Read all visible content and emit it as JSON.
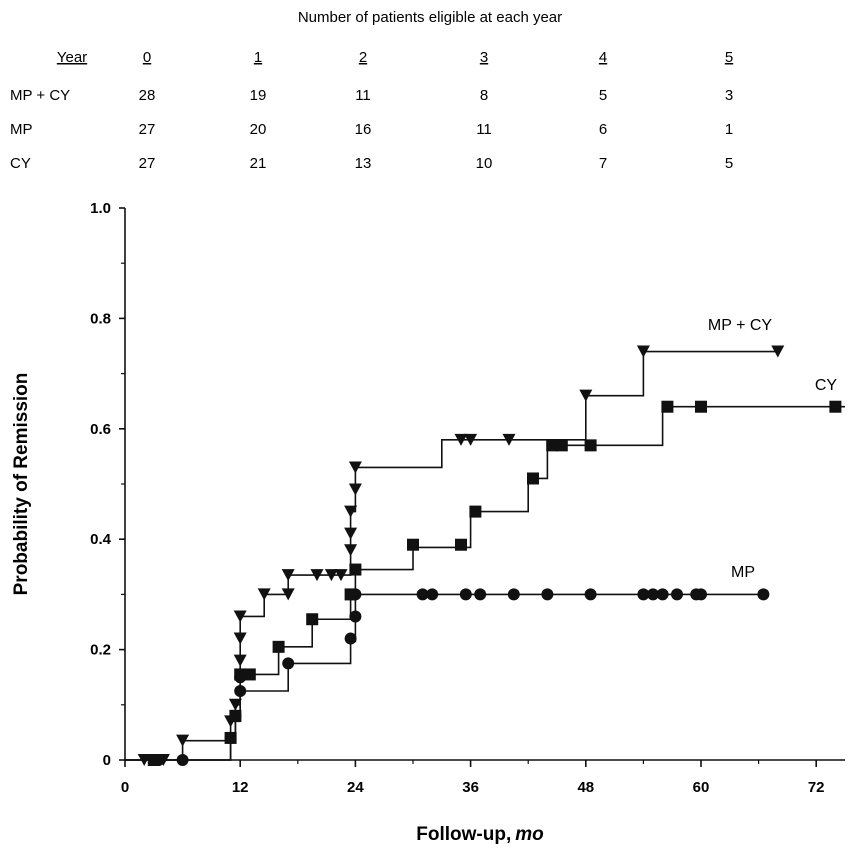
{
  "risk_table": {
    "title": "Number of patients eligible at each year",
    "header_label": "Year",
    "years": [
      "0",
      "1",
      "2",
      "3",
      "4",
      "5"
    ],
    "rows": [
      {
        "label": "MP + CY",
        "values": [
          "28",
          "19",
          "11",
          "8",
          "5",
          "3"
        ]
      },
      {
        "label": "MP",
        "values": [
          "27",
          "20",
          "16",
          "11",
          "6",
          "1"
        ]
      },
      {
        "label": "CY",
        "values": [
          "27",
          "21",
          "13",
          "10",
          "7",
          "5"
        ]
      }
    ]
  },
  "chart_data": {
    "type": "line",
    "title": "",
    "xlabel": "Follow-up,",
    "xlabel_unit": "mo",
    "ylabel": "Probability of Remission",
    "xlim": [
      0,
      75
    ],
    "ylim": [
      0,
      1.0
    ],
    "x_ticks": [
      0,
      12,
      24,
      36,
      48,
      60,
      72
    ],
    "x_tick_labels": [
      "0",
      "12",
      "24",
      "36",
      "48",
      "60",
      "72"
    ],
    "y_ticks": [
      0,
      0.2,
      0.4,
      0.6,
      0.8,
      1.0
    ],
    "y_tick_labels": [
      "0",
      "0.2",
      "0.4",
      "0.6",
      "0.8",
      "1.0"
    ],
    "grid": false,
    "legend": "none (direct labels)",
    "series": [
      {
        "name": "MP + CY",
        "marker": "triangle-down",
        "steps": [
          [
            0,
            0
          ],
          [
            6,
            0.035
          ],
          [
            11,
            0.07
          ],
          [
            12,
            0.26
          ],
          [
            14.5,
            0.3
          ],
          [
            17,
            0.335
          ],
          [
            23.5,
            0.45
          ],
          [
            24,
            0.53
          ],
          [
            33,
            0.58
          ],
          [
            48,
            0.66
          ],
          [
            54,
            0.74
          ],
          [
            68,
            0.74
          ]
        ],
        "markers": [
          [
            2,
            0
          ],
          [
            4,
            0
          ],
          [
            6,
            0.035
          ],
          [
            11,
            0.07
          ],
          [
            11.5,
            0.1
          ],
          [
            12,
            0.18
          ],
          [
            12,
            0.22
          ],
          [
            12,
            0.26
          ],
          [
            14.5,
            0.3
          ],
          [
            17,
            0.3
          ],
          [
            17,
            0.335
          ],
          [
            20,
            0.335
          ],
          [
            21.5,
            0.335
          ],
          [
            22.5,
            0.335
          ],
          [
            23.5,
            0.38
          ],
          [
            23.5,
            0.41
          ],
          [
            23.5,
            0.45
          ],
          [
            24,
            0.49
          ],
          [
            24,
            0.53
          ],
          [
            35,
            0.58
          ],
          [
            36,
            0.58
          ],
          [
            40,
            0.58
          ],
          [
            48,
            0.66
          ],
          [
            54,
            0.74
          ],
          [
            68,
            0.74
          ]
        ]
      },
      {
        "name": "CY",
        "marker": "square",
        "steps": [
          [
            0,
            0
          ],
          [
            11,
            0.04
          ],
          [
            11.5,
            0.1
          ],
          [
            12,
            0.155
          ],
          [
            16,
            0.205
          ],
          [
            19.5,
            0.255
          ],
          [
            23.5,
            0.3
          ],
          [
            24,
            0.345
          ],
          [
            30,
            0.385
          ],
          [
            36,
            0.45
          ],
          [
            42,
            0.51
          ],
          [
            44,
            0.57
          ],
          [
            56,
            0.64
          ],
          [
            75,
            0.64
          ]
        ],
        "markers": [
          [
            3,
            0
          ],
          [
            11,
            0.04
          ],
          [
            11.5,
            0.08
          ],
          [
            12,
            0.155
          ],
          [
            13,
            0.155
          ],
          [
            16,
            0.205
          ],
          [
            19.5,
            0.255
          ],
          [
            23.5,
            0.3
          ],
          [
            24,
            0.345
          ],
          [
            30,
            0.39
          ],
          [
            35,
            0.39
          ],
          [
            36.5,
            0.45
          ],
          [
            42.5,
            0.51
          ],
          [
            44.5,
            0.57
          ],
          [
            45.5,
            0.57
          ],
          [
            48.5,
            0.57
          ],
          [
            56.5,
            0.64
          ],
          [
            60,
            0.64
          ],
          [
            74,
            0.64
          ]
        ]
      },
      {
        "name": "MP",
        "marker": "circle",
        "steps": [
          [
            0,
            0
          ],
          [
            11,
            0.04
          ],
          [
            11.5,
            0.08
          ],
          [
            12,
            0.125
          ],
          [
            17,
            0.175
          ],
          [
            23.5,
            0.215
          ],
          [
            24,
            0.3
          ],
          [
            67,
            0.3
          ]
        ],
        "markers": [
          [
            3.5,
            0
          ],
          [
            6,
            0
          ],
          [
            11,
            0.04
          ],
          [
            11.5,
            0.08
          ],
          [
            12,
            0.125
          ],
          [
            12,
            0.15
          ],
          [
            17,
            0.175
          ],
          [
            23.5,
            0.22
          ],
          [
            24,
            0.26
          ],
          [
            24,
            0.3
          ],
          [
            31,
            0.3
          ],
          [
            32,
            0.3
          ],
          [
            35.5,
            0.3
          ],
          [
            37,
            0.3
          ],
          [
            40.5,
            0.3
          ],
          [
            44,
            0.3
          ],
          [
            48.5,
            0.3
          ],
          [
            54,
            0.3
          ],
          [
            55,
            0.3
          ],
          [
            56,
            0.3
          ],
          [
            57.5,
            0.3
          ],
          [
            59.5,
            0.3
          ],
          [
            60,
            0.3
          ],
          [
            66.5,
            0.3
          ]
        ]
      }
    ]
  }
}
